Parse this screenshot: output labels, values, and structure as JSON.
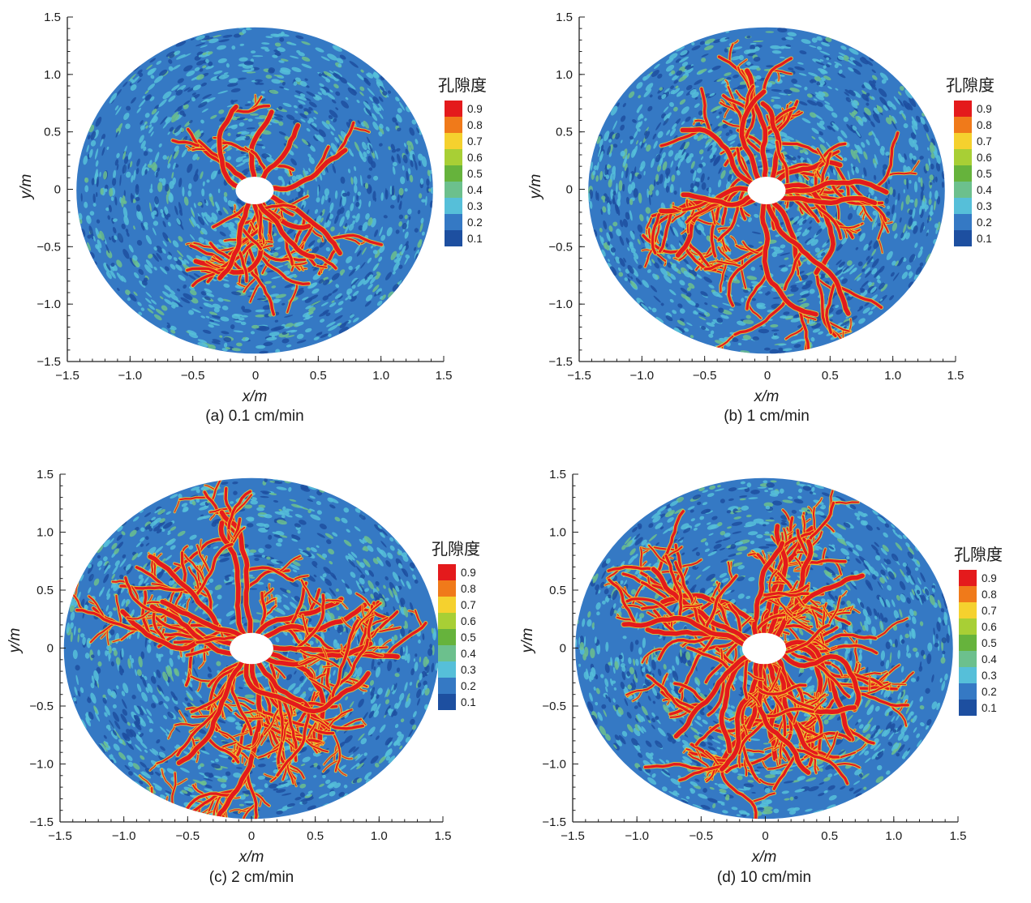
{
  "figure": {
    "colorbar": {
      "title": "孔隙度",
      "levels": [
        {
          "label": "0.9",
          "color": "#e41a1c"
        },
        {
          "label": "0.8",
          "color": "#f07a1a"
        },
        {
          "label": "0.7",
          "color": "#f5d12e"
        },
        {
          "label": "0.6",
          "color": "#a8cf35"
        },
        {
          "label": "0.5",
          "color": "#66b33c"
        },
        {
          "label": "0.4",
          "color": "#6cc08d"
        },
        {
          "label": "0.3",
          "color": "#56bfd9"
        },
        {
          "label": "0.2",
          "color": "#3579c4"
        },
        {
          "label": "0.1",
          "color": "#1d4fa0"
        }
      ]
    },
    "x_tick_labels": [
      "−1.5",
      "−1.0",
      "−0.5",
      "0",
      "0.5",
      "1.0",
      "1.5"
    ],
    "y_tick_labels": [
      "1.5",
      "1.0",
      "0.5",
      "0",
      "−0.5",
      "−1.0",
      "−1.5"
    ]
  },
  "chart_data": [
    {
      "type": "heatmap",
      "panel": "a",
      "caption": "(a) 0.1 cm/min",
      "xlabel": "x/m",
      "ylabel": "y/m",
      "xlim": [
        -1.5,
        1.5
      ],
      "ylim": [
        -1.5,
        1.5
      ],
      "x_ticks": [
        -1.5,
        -1.0,
        -0.5,
        0,
        0.5,
        1.0,
        1.5
      ],
      "y_ticks": [
        -1.5,
        -1.0,
        -0.5,
        0,
        0.5,
        1.0,
        1.5
      ],
      "domain_radius": 1.45,
      "wellbore_radius": 0.08,
      "colorbar_title": "孔隙度",
      "colorbar_levels": [
        0.1,
        0.2,
        0.3,
        0.4,
        0.5,
        0.6,
        0.7,
        0.8,
        0.9
      ],
      "background_porosity_range": [
        0.1,
        0.4
      ],
      "wormhole_porosity": 0.9,
      "wormholes": [
        {
          "angle": 92,
          "length": 0.62
        },
        {
          "angle": 62,
          "length": 0.58
        },
        {
          "angle": 138,
          "length": 0.5
        },
        {
          "angle": 168,
          "length": 0.82
        },
        {
          "angle": 14,
          "length": 0.78
        },
        {
          "angle": -22,
          "length": 0.82
        },
        {
          "angle": -55,
          "length": 0.5
        },
        {
          "angle": -92,
          "length": 1.08
        },
        {
          "angle": -118,
          "length": 0.72
        },
        {
          "angle": -72,
          "length": 0.68
        }
      ]
    },
    {
      "type": "heatmap",
      "panel": "b",
      "caption": "(b) 1 cm/min",
      "xlabel": "x/m",
      "ylabel": "y/m",
      "xlim": [
        -1.5,
        1.5
      ],
      "ylim": [
        -1.5,
        1.5
      ],
      "x_ticks": [
        -1.5,
        -1.0,
        -0.5,
        0,
        0.5,
        1.0,
        1.5
      ],
      "y_ticks": [
        -1.5,
        -1.0,
        -0.5,
        0,
        0.5,
        1.0,
        1.5
      ],
      "domain_radius": 1.45,
      "wellbore_radius": 0.08,
      "colorbar_title": "孔隙度",
      "colorbar_levels": [
        0.1,
        0.2,
        0.3,
        0.4,
        0.5,
        0.6,
        0.7,
        0.8,
        0.9
      ],
      "background_porosity_range": [
        0.1,
        0.4
      ],
      "wormhole_porosity": 0.9,
      "wormholes": [
        {
          "angle": 96,
          "length": 0.95
        },
        {
          "angle": 122,
          "length": 0.85
        },
        {
          "angle": 62,
          "length": 0.7
        },
        {
          "angle": 40,
          "length": 0.6
        },
        {
          "angle": 152,
          "length": 0.85
        },
        {
          "angle": 176,
          "length": 0.95
        },
        {
          "angle": 8,
          "length": 1.08
        },
        {
          "angle": -12,
          "length": 0.95
        },
        {
          "angle": -34,
          "length": 0.85
        },
        {
          "angle": -58,
          "length": 0.6
        },
        {
          "angle": -84,
          "length": 1.2
        },
        {
          "angle": -104,
          "length": 1.18
        },
        {
          "angle": -140,
          "length": 0.85
        },
        {
          "angle": -160,
          "length": 0.65
        }
      ]
    },
    {
      "type": "heatmap",
      "panel": "c",
      "caption": "(c) 2 cm/min",
      "xlabel": "x/m",
      "ylabel": "y/m",
      "xlim": [
        -1.5,
        1.5
      ],
      "ylim": [
        -1.5,
        1.5
      ],
      "x_ticks": [
        -1.5,
        -1.0,
        -0.5,
        0,
        0.5,
        1.0,
        1.5
      ],
      "y_ticks": [
        -1.5,
        -1.0,
        -0.5,
        0,
        0.5,
        1.0,
        1.5
      ],
      "domain_radius": 1.5,
      "wellbore_radius": 0.09,
      "colorbar_title": "孔隙度",
      "colorbar_levels": [
        0.1,
        0.2,
        0.3,
        0.4,
        0.5,
        0.6,
        0.7,
        0.8,
        0.9
      ],
      "background_porosity_range": [
        0.1,
        0.4
      ],
      "wormhole_porosity": 0.9,
      "wormholes": [
        {
          "angle": 94,
          "length": 1.1
        },
        {
          "angle": 112,
          "length": 1.0
        },
        {
          "angle": 70,
          "length": 0.8
        },
        {
          "angle": 40,
          "length": 0.95
        },
        {
          "angle": 148,
          "length": 1.05
        },
        {
          "angle": 170,
          "length": 1.1
        },
        {
          "angle": 14,
          "length": 1.12
        },
        {
          "angle": -6,
          "length": 1.05
        },
        {
          "angle": -30,
          "length": 0.95
        },
        {
          "angle": -58,
          "length": 0.85
        },
        {
          "angle": -88,
          "length": 1.4
        },
        {
          "angle": -108,
          "length": 1.35
        },
        {
          "angle": -128,
          "length": 1.05
        },
        {
          "angle": -160,
          "length": 0.85
        },
        {
          "angle": 130,
          "length": 0.75
        }
      ]
    },
    {
      "type": "heatmap",
      "panel": "d",
      "caption": "(d) 10 cm/min",
      "xlabel": "x/m",
      "ylabel": "y/m",
      "xlim": [
        -1.5,
        1.5
      ],
      "ylim": [
        -1.5,
        1.5
      ],
      "x_ticks": [
        -1.5,
        -1.0,
        -0.5,
        0,
        0.5,
        1.0,
        1.5
      ],
      "y_ticks": [
        -1.5,
        -1.0,
        -0.5,
        0,
        0.5,
        1.0,
        1.5
      ],
      "domain_radius": 1.5,
      "wellbore_radius": 0.09,
      "colorbar_title": "孔隙度",
      "colorbar_levels": [
        0.1,
        0.2,
        0.3,
        0.4,
        0.5,
        0.6,
        0.7,
        0.8,
        0.9
      ],
      "background_porosity_range": [
        0.1,
        0.4
      ],
      "wormhole_porosity": 0.9,
      "wormholes": [
        {
          "angle": 90,
          "length": 1.0
        },
        {
          "angle": 108,
          "length": 0.95
        },
        {
          "angle": 72,
          "length": 0.95
        },
        {
          "angle": 54,
          "length": 0.9
        },
        {
          "angle": 36,
          "length": 0.95
        },
        {
          "angle": 126,
          "length": 0.85
        },
        {
          "angle": 144,
          "length": 0.9
        },
        {
          "angle": 162,
          "length": 1.05
        },
        {
          "angle": 178,
          "length": 1.12
        },
        {
          "angle": 18,
          "length": 1.05
        },
        {
          "angle": 2,
          "length": 1.15
        },
        {
          "angle": -14,
          "length": 1.05
        },
        {
          "angle": -32,
          "length": 0.95
        },
        {
          "angle": -50,
          "length": 0.9
        },
        {
          "angle": -68,
          "length": 0.85
        },
        {
          "angle": -86,
          "length": 1.05
        },
        {
          "angle": -104,
          "length": 1.08
        },
        {
          "angle": -122,
          "length": 1.0
        },
        {
          "angle": -140,
          "length": 0.9
        },
        {
          "angle": -160,
          "length": 0.95
        }
      ]
    }
  ]
}
